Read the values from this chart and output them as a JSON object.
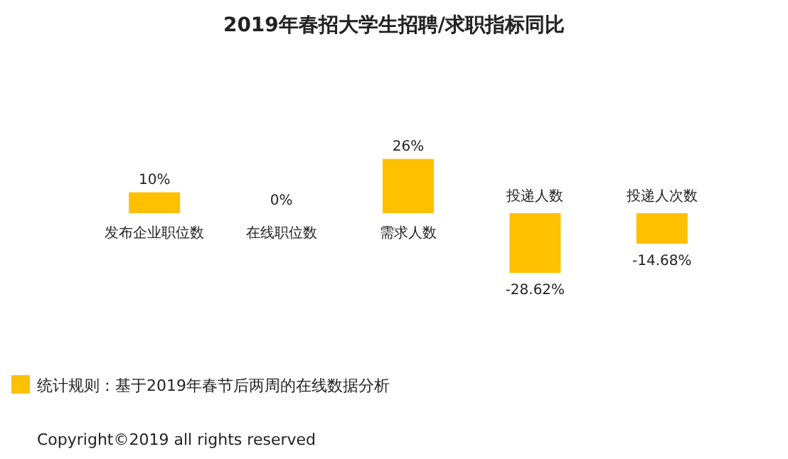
{
  "chart_data": {
    "type": "bar",
    "title": "2019年春招大学生招聘/求职指标同比",
    "categories": [
      "发布企业职位数",
      "在线职位数",
      "需求人数",
      "投递人数",
      "投递人次数"
    ],
    "values": [
      10,
      0,
      26,
      -28.62,
      -14.68
    ],
    "value_labels": [
      "10%",
      "0%",
      "26%",
      "-28.62%",
      "-14.68%"
    ],
    "color": "#ffc000",
    "annotations": [
      "统计规则：基于2019年春节后两周的在线数据分析",
      "Copyright©2019 all rights reserved"
    ]
  }
}
